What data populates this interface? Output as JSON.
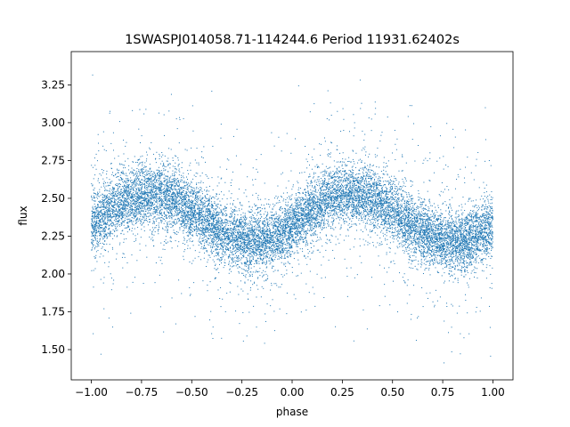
{
  "chart_data": {
    "type": "scatter",
    "title": "1SWASPJ014058.71-114244.6 Period 11931.62402s",
    "xlabel": "phase",
    "ylabel": "flux",
    "xlim": [
      -1.1,
      1.1
    ],
    "ylim": [
      1.3,
      3.47
    ],
    "grid": false,
    "legend": "none",
    "marker_color": "#1f77b4",
    "x_ticks": [
      -1.0,
      -0.75,
      -0.5,
      -0.25,
      0.0,
      0.25,
      0.5,
      0.75,
      1.0
    ],
    "x_tick_labels": [
      "−1.00",
      "−0.75",
      "−0.50",
      "−0.25",
      "0.00",
      "0.25",
      "0.50",
      "0.75",
      "1.00"
    ],
    "y_ticks": [
      1.5,
      1.75,
      2.0,
      2.25,
      2.5,
      2.75,
      3.0,
      3.25
    ],
    "y_tick_labels": [
      "1.50",
      "1.75",
      "2.00",
      "2.25",
      "2.50",
      "2.75",
      "3.00",
      "3.25"
    ],
    "series": [
      {
        "x_range": [
          -1.0,
          1.0
        ],
        "n_points": 14000,
        "mean_flux": 2.37,
        "amplitude": 0.16,
        "max_phase": -0.7,
        "min_phase": -0.2,
        "period_in_phase": 1.0,
        "scatter_sigma": 0.1,
        "outlier_fraction": 0.1,
        "outlier_range": [
          1.4,
          3.35
        ]
      }
    ]
  }
}
